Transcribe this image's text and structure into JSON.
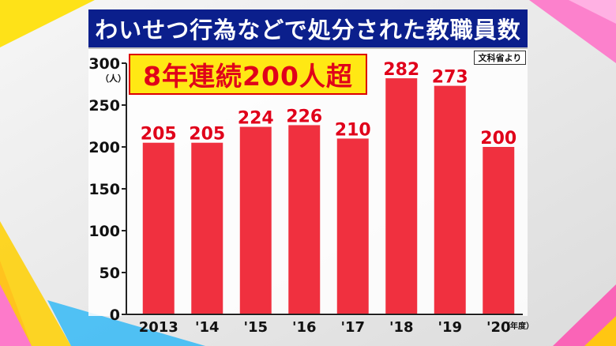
{
  "title": "わいせつ行為などで処分された教職員数",
  "source": "文科省より",
  "headline": "8年連続200人超",
  "y_unit": "（人）",
  "x_unit": "（年度）",
  "colors": {
    "title_bg": "#0b1f8c",
    "bar": "#f0303f",
    "label": "#e0001a",
    "headline_bg": "#ffe814"
  },
  "chart_data": {
    "type": "bar",
    "categories": [
      "2013",
      "'14",
      "'15",
      "'16",
      "'17",
      "'18",
      "'19",
      "'20"
    ],
    "values": [
      205,
      205,
      224,
      226,
      210,
      282,
      273,
      200
    ],
    "data_labels": [
      "205",
      "205",
      "224",
      "226",
      "210",
      "282",
      "273",
      "200"
    ],
    "yticks": [
      "0",
      "50",
      "100",
      "150",
      "200",
      "250",
      "300"
    ],
    "ylim": [
      0,
      300
    ],
    "grid": false
  }
}
